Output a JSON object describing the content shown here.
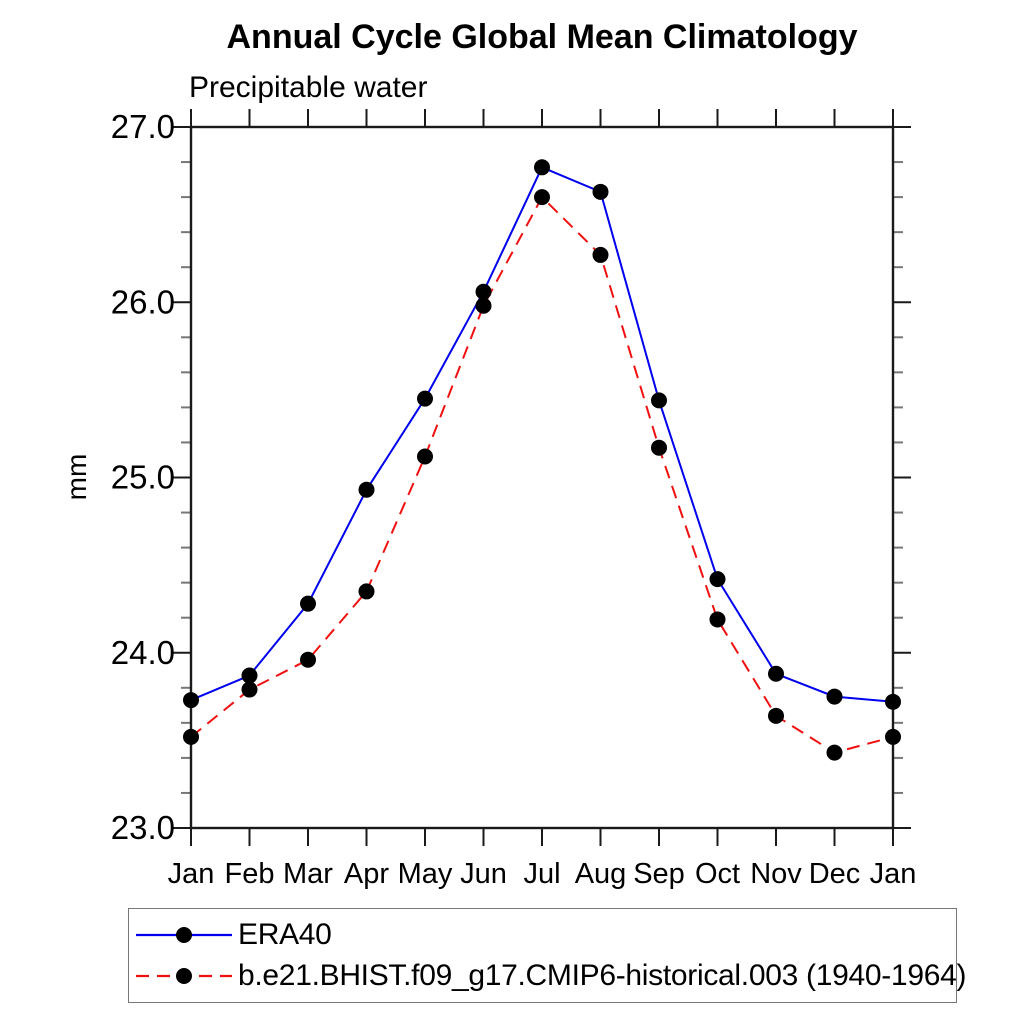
{
  "title": "Annual Cycle Global Mean Climatology",
  "subtitle": "Precipitable water",
  "ylabel": "mm",
  "legend": {
    "entries": [
      {
        "label": "ERA40"
      },
      {
        "label": "b.e21.BHIST.f09_g17.CMIP6-historical.003 (1940-1964)"
      }
    ]
  },
  "chart_data": {
    "type": "line",
    "title": "Annual Cycle Global Mean Climatology",
    "subtitle": "Precipitable water",
    "xlabel": "",
    "ylabel": "mm",
    "categories": [
      "Jan",
      "Feb",
      "Mar",
      "Apr",
      "May",
      "Jun",
      "Jul",
      "Aug",
      "Sep",
      "Oct",
      "Nov",
      "Dec",
      "Jan"
    ],
    "ylim": [
      23.0,
      27.0
    ],
    "ytick_major": [
      23.0,
      24.0,
      25.0,
      26.0,
      27.0
    ],
    "ytick_major_labels": [
      "23.0",
      "24.0",
      "25.0",
      "26.0",
      "27.0"
    ],
    "ytick_minor_step": 0.2,
    "grid": false,
    "legend_position": "bottom-left-box",
    "series": [
      {
        "name": "ERA40",
        "color": "#0000ee",
        "line_style": "solid",
        "marker": "filled-circle",
        "marker_color": "#000000",
        "values": [
          23.73,
          23.87,
          24.28,
          24.93,
          25.45,
          26.06,
          26.77,
          26.63,
          25.44,
          24.42,
          23.88,
          23.75,
          23.72
        ]
      },
      {
        "name": "b.e21.BHIST.f09_g17.CMIP6-historical.003 (1940-1964)",
        "color": "#f01010",
        "line_style": "dashed",
        "marker": "filled-circle",
        "marker_color": "#000000",
        "values": [
          23.52,
          23.79,
          23.96,
          24.35,
          25.12,
          25.98,
          26.6,
          26.27,
          25.17,
          24.19,
          23.64,
          23.43,
          23.52
        ]
      }
    ],
    "axis_color": "#1a1a1a",
    "minor_tick_color": "#777777"
  }
}
